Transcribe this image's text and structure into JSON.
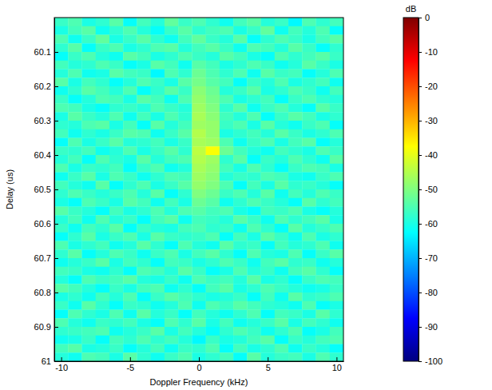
{
  "chart_data": {
    "type": "heatmap",
    "x_label": "Doppler Frequency (kHz)",
    "y_label": "Delay (us)",
    "colorbar_label": "dB",
    "xlim": [
      -10.5,
      10.5
    ],
    "ylim": [
      60,
      61
    ],
    "xticks": [
      -10,
      -5,
      0,
      5,
      10
    ],
    "yticks": [
      60.1,
      60.2,
      60.3,
      60.4,
      60.5,
      60.6,
      60.7,
      60.8,
      60.9,
      61
    ],
    "color_range": [
      -100,
      0
    ],
    "colorbar_ticks": [
      0,
      -10,
      -20,
      -30,
      -40,
      -50,
      -60,
      -70,
      -80,
      -90,
      -100
    ],
    "x": [
      -10,
      -9,
      -8,
      -7,
      -6,
      -5,
      -4,
      -3,
      -2,
      -1,
      0,
      1,
      2,
      3,
      4,
      5,
      6,
      7,
      8,
      9,
      10
    ],
    "y": [
      60.0125,
      60.0375,
      60.0625,
      60.0875,
      60.1125,
      60.1375,
      60.1625,
      60.1875,
      60.2125,
      60.2375,
      60.2625,
      60.2875,
      60.3125,
      60.3375,
      60.3625,
      60.3875,
      60.4125,
      60.4375,
      60.4625,
      60.4875,
      60.5125,
      60.5375,
      60.5625,
      60.5875,
      60.6125,
      60.6375,
      60.6625,
      60.6875,
      60.7125,
      60.7375,
      60.7625,
      60.7875,
      60.8125,
      60.8375,
      60.8625,
      60.8875,
      60.9125,
      60.9375,
      60.9625,
      60.9875
    ],
    "z": [
      [
        -57,
        -55,
        -60,
        -58,
        -54,
        -62,
        -56,
        -59,
        -53,
        -57,
        -55,
        -58,
        -61,
        -56,
        -54,
        -59,
        -57,
        -63,
        -55,
        -58,
        -56
      ],
      [
        -60,
        -56,
        -54,
        -61,
        -58,
        -55,
        -59,
        -62,
        -57,
        -54,
        -58,
        -56,
        -55,
        -60,
        -57,
        -53,
        -61,
        -56,
        -59,
        -55,
        -62
      ],
      [
        -55,
        -61,
        -57,
        -53,
        -60,
        -57,
        -54,
        -58,
        -61,
        -56,
        -53,
        -57,
        -59,
        -54,
        -62,
        -58,
        -55,
        -57,
        -60,
        -56,
        -54
      ],
      [
        -58,
        -54,
        -62,
        -57,
        -55,
        -60,
        -58,
        -55,
        -54,
        -59,
        -56,
        -54,
        -57,
        -61,
        -55,
        -56,
        -59,
        -54,
        -57,
        -62,
        -58
      ],
      [
        -62,
        -57,
        -55,
        -59,
        -61,
        -54,
        -56,
        -60,
        -58,
        -55,
        -57,
        -59,
        -54,
        -56,
        -60,
        -62,
        -55,
        -58,
        -56,
        -54,
        -57
      ],
      [
        -56,
        -59,
        -58,
        -55,
        -57,
        -62,
        -60,
        -54,
        -56,
        -61,
        -54,
        -56,
        -60,
        -58,
        -55,
        -57,
        -61,
        -59,
        -54,
        -57,
        -60
      ],
      [
        -59,
        -55,
        -61,
        -60,
        -54,
        -56,
        -57,
        -63,
        -55,
        -58,
        -52,
        -55,
        -58,
        -55,
        -61,
        -54,
        -57,
        -56,
        -62,
        -59,
        -55
      ],
      [
        -54,
        -60,
        -56,
        -58,
        -62,
        -59,
        -55,
        -57,
        -60,
        -54,
        -51,
        -54,
        -56,
        -62,
        -57,
        -59,
        -55,
        -60,
        -58,
        -56,
        -61
      ],
      [
        -61,
        -58,
        -54,
        -56,
        -59,
        -55,
        -62,
        -58,
        -54,
        -57,
        -49,
        -52,
        -59,
        -57,
        -54,
        -60,
        -58,
        -55,
        -57,
        -61,
        -56
      ],
      [
        -57,
        -62,
        -59,
        -55,
        -56,
        -60,
        -54,
        -56,
        -61,
        -55,
        -48,
        -51,
        -55,
        -60,
        -58,
        -56,
        -62,
        -57,
        -55,
        -58,
        -59
      ],
      [
        -55,
        -56,
        -60,
        -62,
        -58,
        -57,
        -59,
        -55,
        -57,
        -59,
        -47,
        -50,
        -58,
        -54,
        -61,
        -57,
        -55,
        -59,
        -62,
        -54,
        -57
      ],
      [
        -60,
        -54,
        -57,
        -59,
        -55,
        -61,
        -56,
        -60,
        -55,
        -58,
        -46,
        -49,
        -56,
        -59,
        -55,
        -62,
        -57,
        -54,
        -56,
        -60,
        -58
      ],
      [
        -58,
        -59,
        -55,
        -54,
        -60,
        -56,
        -62,
        -54,
        -59,
        -56,
        -47,
        -48,
        -57,
        -55,
        -60,
        -54,
        -59,
        -61,
        -57,
        -55,
        -62
      ],
      [
        -56,
        -61,
        -58,
        -60,
        -57,
        -54,
        -55,
        -61,
        -57,
        -54,
        -45,
        -48,
        -60,
        -58,
        -56,
        -59,
        -54,
        -57,
        -60,
        -58,
        -55
      ],
      [
        -62,
        -55,
        -60,
        -57,
        -54,
        -59,
        -58,
        -56,
        -60,
        -57,
        -46,
        -47,
        -55,
        -61,
        -57,
        -55,
        -60,
        -56,
        -54,
        -62,
        -59
      ],
      [
        -57,
        -58,
        -56,
        -61,
        -59,
        -55,
        -60,
        -57,
        -54,
        -58,
        -44,
        -38,
        -52,
        -56,
        -59,
        -61,
        -56,
        -58,
        -60,
        -55,
        -57
      ],
      [
        -59,
        -56,
        -62,
        -55,
        -58,
        -60,
        -54,
        -59,
        -56,
        -55,
        -45,
        -47,
        -58,
        -54,
        -62,
        -57,
        -59,
        -55,
        -58,
        -61,
        -54
      ],
      [
        -55,
        -60,
        -57,
        -58,
        -56,
        -62,
        -57,
        -55,
        -61,
        -59,
        -46,
        -48,
        -56,
        -60,
        -55,
        -58,
        -62,
        -57,
        -55,
        -56,
        -60
      ],
      [
        -61,
        -57,
        -54,
        -60,
        -55,
        -57,
        -61,
        -58,
        -55,
        -56,
        -47,
        -49,
        -59,
        -57,
        -58,
        -55,
        -56,
        -60,
        -61,
        -57,
        -55
      ],
      [
        -56,
        -59,
        -61,
        -54,
        -62,
        -58,
        -55,
        -60,
        -57,
        -54,
        -48,
        -50,
        -55,
        -62,
        -56,
        -60,
        -54,
        -58,
        -57,
        -59,
        -62
      ],
      [
        -58,
        -55,
        -57,
        -59,
        -57,
        -55,
        -59,
        -54,
        -62,
        -58,
        -50,
        -52,
        -57,
        -55,
        -59,
        -54,
        -61,
        -56,
        -59,
        -55,
        -57
      ],
      [
        -60,
        -62,
        -55,
        -57,
        -60,
        -54,
        -56,
        -61,
        -56,
        -60,
        -52,
        -54,
        -61,
        -58,
        -55,
        -57,
        -59,
        -62,
        -54,
        -58,
        -56
      ],
      [
        -54,
        -57,
        -59,
        -62,
        -56,
        -60,
        -58,
        -55,
        -59,
        -55,
        -54,
        -56,
        -55,
        -60,
        -62,
        -56,
        -57,
        -55,
        -60,
        -62,
        -59
      ],
      [
        -59,
        -56,
        -61,
        -55,
        -59,
        -57,
        -62,
        -56,
        -54,
        -61,
        -56,
        -57,
        -59,
        -54,
        -57,
        -61,
        -55,
        -58,
        -56,
        -54,
        -60
      ],
      [
        -57,
        -61,
        -56,
        -58,
        -54,
        -62,
        -57,
        -59,
        -60,
        -56,
        -55,
        -58,
        -57,
        -61,
        -55,
        -58,
        -62,
        -54,
        -59,
        -57,
        -55
      ],
      [
        -62,
        -58,
        -54,
        -60,
        -57,
        -55,
        -60,
        -54,
        -57,
        -58,
        -57,
        -55,
        -62,
        -56,
        -60,
        -54,
        -57,
        -61,
        -55,
        -60,
        -58
      ],
      [
        -55,
        -60,
        -58,
        -56,
        -61,
        -59,
        -54,
        -58,
        -62,
        -55,
        -59,
        -61,
        -54,
        -58,
        -57,
        -62,
        -56,
        -59,
        -58,
        -55,
        -61
      ],
      [
        -58,
        -54,
        -62,
        -59,
        -55,
        -57,
        -61,
        -57,
        -55,
        -60,
        -56,
        -54,
        -58,
        -62,
        -55,
        -59,
        -60,
        -55,
        -62,
        -57,
        -54
      ],
      [
        -61,
        -59,
        -57,
        -54,
        -60,
        -56,
        -58,
        -62,
        -56,
        -57,
        -60,
        -58,
        -55,
        -57,
        -61,
        -56,
        -54,
        -58,
        -57,
        -61,
        -59
      ],
      [
        -56,
        -57,
        -60,
        -61,
        -58,
        -62,
        -55,
        -56,
        -59,
        -54,
        -57,
        -62,
        -60,
        -55,
        -59,
        -57,
        -61,
        -56,
        -54,
        -58,
        -62
      ],
      [
        -59,
        -62,
        -55,
        -57,
        -56,
        -54,
        -59,
        -60,
        -57,
        -61,
        -55,
        -57,
        -56,
        -59,
        -54,
        -60,
        -58,
        -62,
        -57,
        -55,
        -56
      ],
      [
        -54,
        -56,
        -59,
        -62,
        -57,
        -60,
        -56,
        -55,
        -61,
        -58,
        -62,
        -56,
        -54,
        -60,
        -58,
        -55,
        -57,
        -59,
        -61,
        -60,
        -57
      ],
      [
        -60,
        -58,
        -61,
        -56,
        -59,
        -55,
        -62,
        -57,
        -54,
        -56,
        -58,
        -60,
        -59,
        -57,
        -62,
        -56,
        -61,
        -54,
        -58,
        -57,
        -55
      ],
      [
        -57,
        -61,
        -54,
        -58,
        -62,
        -57,
        -58,
        -61,
        -59,
        -55,
        -61,
        -55,
        -57,
        -54,
        -56,
        -58,
        -59,
        -61,
        -55,
        -62,
        -60
      ],
      [
        -62,
        -55,
        -58,
        -60,
        -55,
        -61,
        -54,
        -59,
        -57,
        -62,
        -56,
        -59,
        -61,
        -58,
        -55,
        -62,
        -56,
        -57,
        -60,
        -54,
        -58
      ],
      [
        -55,
        -59,
        -61,
        -57,
        -58,
        -56,
        -60,
        -62,
        -55,
        -58,
        -54,
        -60,
        -56,
        -61,
        -59,
        -57,
        -54,
        -60,
        -56,
        -58,
        -61
      ],
      [
        -58,
        -57,
        -56,
        -55,
        -61,
        -59,
        -57,
        -54,
        -60,
        -56,
        -59,
        -62,
        -58,
        -55,
        -57,
        -61,
        -58,
        -55,
        -62,
        -60,
        -56
      ],
      [
        -61,
        -60,
        -57,
        -62,
        -56,
        -58,
        -55,
        -58,
        -56,
        -59,
        -63,
        -57,
        -60,
        -59,
        -56,
        -54,
        -62,
        -57,
        -59,
        -56,
        -55
      ],
      [
        -56,
        -54,
        -60,
        -59,
        -57,
        -62,
        -59,
        -56,
        -61,
        -57,
        -58,
        -55,
        -62,
        -56,
        -60,
        -58,
        -55,
        -61,
        -57,
        -59,
        -62
      ],
      [
        -59,
        -61,
        -55,
        -56,
        -60,
        -54,
        -58,
        -61,
        -57,
        -55,
        -60,
        -58,
        -56,
        -62,
        -54,
        -59,
        -57,
        -56,
        -60,
        -55,
        -58
      ]
    ]
  }
}
